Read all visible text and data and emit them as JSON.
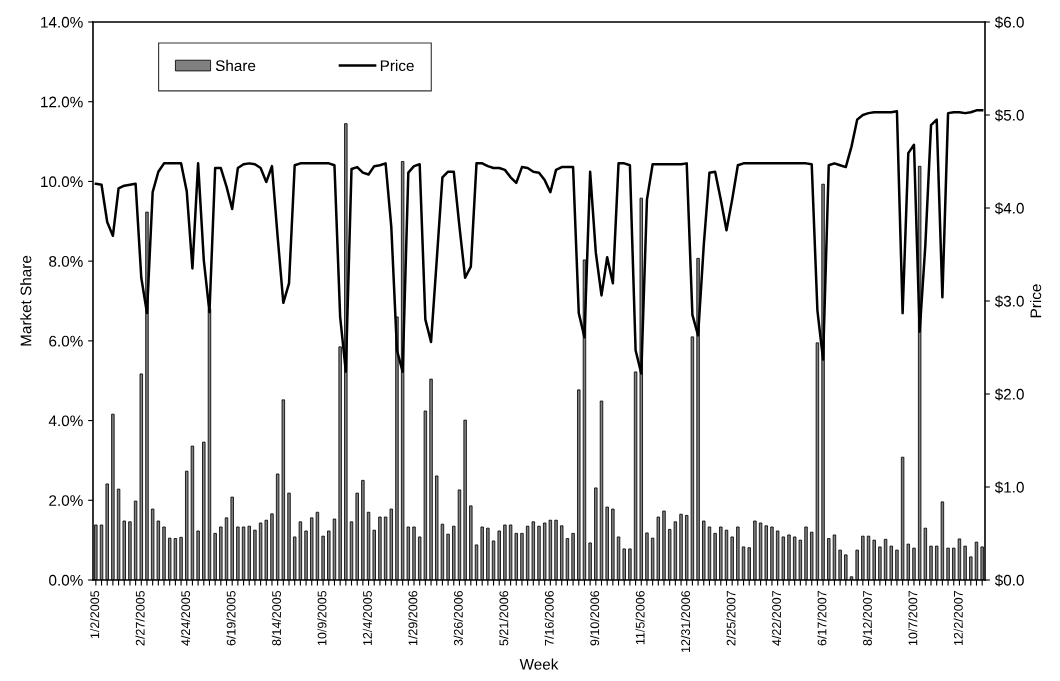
{
  "chart_data": {
    "type": "bar",
    "xlabel": "Week",
    "ylabel": "Market Share",
    "y2label": "Price",
    "categories": [
      "1/2/2005",
      null,
      null,
      null,
      null,
      null,
      null,
      null,
      "2/27/2005",
      null,
      null,
      null,
      null,
      null,
      null,
      null,
      "4/24/2005",
      null,
      null,
      null,
      null,
      null,
      null,
      null,
      "6/19/2005",
      null,
      null,
      null,
      null,
      null,
      null,
      null,
      "8/14/2005",
      null,
      null,
      null,
      null,
      null,
      null,
      null,
      "10/9/2005",
      null,
      null,
      null,
      null,
      null,
      null,
      null,
      "12/4/2005",
      null,
      null,
      null,
      null,
      null,
      null,
      null,
      "1/29/2006",
      null,
      null,
      null,
      null,
      null,
      null,
      null,
      "3/26/2006",
      null,
      null,
      null,
      null,
      null,
      null,
      null,
      "5/21/2006",
      null,
      null,
      null,
      null,
      null,
      null,
      null,
      "7/16/2006",
      null,
      null,
      null,
      null,
      null,
      null,
      null,
      "9/10/2006",
      null,
      null,
      null,
      null,
      null,
      null,
      null,
      "11/5/2006",
      null,
      null,
      null,
      null,
      null,
      null,
      null,
      "12/31/2006",
      null,
      null,
      null,
      null,
      null,
      null,
      null,
      "2/25/2007",
      null,
      null,
      null,
      null,
      null,
      null,
      null,
      "4/22/2007",
      null,
      null,
      null,
      null,
      null,
      null,
      null,
      "6/17/2007",
      null,
      null,
      null,
      null,
      null,
      null,
      null,
      "8/12/2007",
      null,
      null,
      null,
      null,
      null,
      null,
      null,
      "10/7/2007",
      null,
      null,
      null,
      null,
      null,
      null,
      null,
      "12/2/2007",
      null,
      null,
      null,
      null
    ],
    "series": [
      {
        "name": "Share",
        "type": "bar",
        "color": "#808080",
        "values": [
          1.38,
          1.38,
          2.41,
          4.16,
          2.28,
          1.48,
          1.46,
          1.98,
          5.17,
          9.23,
          1.78,
          1.48,
          1.33,
          1.05,
          1.04,
          1.07,
          2.73,
          3.36,
          1.23,
          3.46,
          6.8,
          1.17,
          1.33,
          1.56,
          2.08,
          1.33,
          1.33,
          1.35,
          1.25,
          1.43,
          1.5,
          1.66,
          2.66,
          4.52,
          2.18,
          1.08,
          1.46,
          1.23,
          1.56,
          1.7,
          1.1,
          1.23,
          1.53,
          5.85,
          11.45,
          1.46,
          2.18,
          2.5,
          1.7,
          1.25,
          1.58,
          1.58,
          1.78,
          6.6,
          10.5,
          1.33,
          1.33,
          1.08,
          4.24,
          5.04,
          2.61,
          1.4,
          1.15,
          1.35,
          2.26,
          4.01,
          1.86,
          0.88,
          1.33,
          1.3,
          0.98,
          1.23,
          1.38,
          1.38,
          1.17,
          1.17,
          1.35,
          1.46,
          1.35,
          1.43,
          1.5,
          1.5,
          1.36,
          1.04,
          1.17,
          4.77,
          8.03,
          0.93,
          2.31,
          4.49,
          1.83,
          1.78,
          1.08,
          0.78,
          0.78,
          5.22,
          9.58,
          1.18,
          1.05,
          1.58,
          1.73,
          1.27,
          1.46,
          1.65,
          1.62,
          6.1,
          8.07,
          1.48,
          1.33,
          1.17,
          1.33,
          1.25,
          1.08,
          1.33,
          0.83,
          0.81,
          1.48,
          1.43,
          1.36,
          1.33,
          1.23,
          1.08,
          1.13,
          1.08,
          1.0,
          1.33,
          1.2,
          5.95,
          9.93,
          1.04,
          1.13,
          0.75,
          0.63,
          0.08,
          0.75,
          1.1,
          1.1,
          1.0,
          0.83,
          1.02,
          0.85,
          0.75,
          3.08,
          0.9,
          0.8,
          10.38,
          1.3,
          0.85,
          0.85,
          1.96,
          0.8,
          0.8,
          1.03,
          0.85,
          0.58,
          0.95,
          0.83
        ]
      },
      {
        "name": "Price",
        "type": "line",
        "axis": "y2",
        "color": "#000000",
        "values": [
          4.26,
          4.25,
          3.85,
          3.7,
          4.21,
          4.24,
          4.25,
          4.26,
          3.25,
          2.87,
          4.17,
          4.39,
          4.48,
          4.48,
          4.48,
          4.48,
          4.18,
          3.35,
          4.48,
          3.44,
          2.88,
          4.43,
          4.43,
          4.23,
          3.99,
          4.43,
          4.47,
          4.48,
          4.47,
          4.43,
          4.28,
          4.45,
          3.69,
          2.98,
          3.19,
          4.46,
          4.48,
          4.48,
          4.48,
          4.48,
          4.48,
          4.48,
          4.46,
          2.83,
          2.24,
          4.42,
          4.44,
          4.38,
          4.36,
          4.45,
          4.46,
          4.48,
          3.8,
          2.47,
          2.24,
          4.38,
          4.45,
          4.47,
          2.8,
          2.56,
          3.44,
          4.33,
          4.39,
          4.39,
          3.8,
          3.25,
          3.37,
          4.48,
          4.48,
          4.45,
          4.43,
          4.43,
          4.41,
          4.33,
          4.27,
          4.44,
          4.43,
          4.39,
          4.38,
          4.3,
          4.17,
          4.41,
          4.44,
          4.44,
          4.44,
          2.87,
          2.61,
          4.39,
          3.52,
          3.06,
          3.47,
          3.19,
          4.48,
          4.48,
          4.46,
          2.47,
          2.22,
          4.09,
          4.47,
          4.47,
          4.47,
          4.47,
          4.47,
          4.47,
          4.48,
          2.85,
          2.63,
          3.6,
          4.38,
          4.39,
          4.09,
          3.76,
          4.09,
          4.46,
          4.48,
          4.48,
          4.48,
          4.48,
          4.48,
          4.48,
          4.48,
          4.48,
          4.48,
          4.48,
          4.48,
          4.48,
          4.47,
          2.9,
          2.37,
          4.46,
          4.48,
          4.46,
          4.44,
          4.66,
          4.95,
          5.0,
          5.02,
          5.03,
          5.03,
          5.03,
          5.03,
          5.04,
          2.87,
          4.59,
          4.68,
          2.67,
          3.6,
          4.89,
          4.95,
          3.04,
          5.02,
          5.03,
          5.03,
          5.02,
          5.03,
          5.05,
          5.05
        ]
      }
    ],
    "ylim": [
      0,
      14
    ],
    "yticks": [
      {
        "value": 0,
        "label": "0.0%"
      },
      {
        "value": 2,
        "label": "2.0%"
      },
      {
        "value": 4,
        "label": "4.0%"
      },
      {
        "value": 6,
        "label": "6.0%"
      },
      {
        "value": 8,
        "label": "8.0%"
      },
      {
        "value": 10,
        "label": "10.0%"
      },
      {
        "value": 12,
        "label": "12.0%"
      },
      {
        "value": 14,
        "label": "14.0%"
      }
    ],
    "y2lim": [
      0,
      6
    ],
    "y2ticks": [
      {
        "value": 0,
        "label": "$0.0"
      },
      {
        "value": 1,
        "label": "$1.0"
      },
      {
        "value": 2,
        "label": "$2.0"
      },
      {
        "value": 3,
        "label": "$3.0"
      },
      {
        "value": 4,
        "label": "$4.0"
      },
      {
        "value": 5,
        "label": "$5.0"
      },
      {
        "value": 6,
        "label": "$6.0"
      }
    ],
    "legend": "top left",
    "marker": "none",
    "line_style": "solid",
    "grid": false
  }
}
